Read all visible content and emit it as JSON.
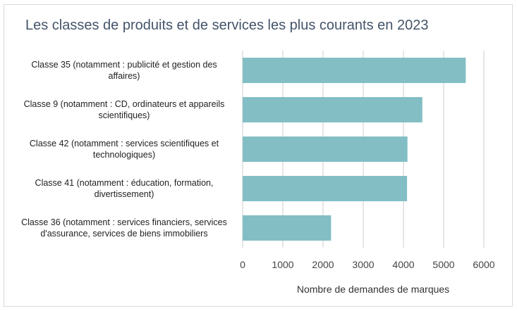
{
  "chart_data": {
    "type": "bar",
    "orientation": "horizontal",
    "title": "Les classes de produits et de services les plus courants en 2023",
    "categories": [
      [
        "Classe 35 (notamment : publicité et gestion des",
        "affaires)"
      ],
      [
        "Classe 9 (notamment : CD, ordinateurs et appareils",
        "scientifiques)"
      ],
      [
        "Classe 42 (notamment : services scientifiques et",
        "technologiques)"
      ],
      [
        "Classe 41 (notamment : éducation, formation,",
        "divertissement)"
      ],
      [
        "Classe 36 (notamment : services financiers, services",
        "d'assurance, services de biens immobiliers"
      ]
    ],
    "values": [
      5550,
      4470,
      4100,
      4090,
      2200
    ],
    "xlabel": "Nombre de demandes de marques",
    "ylabel": "",
    "xlim": [
      0,
      6000
    ],
    "xticks": [
      0,
      1000,
      2000,
      3000,
      4000,
      5000,
      6000
    ],
    "grid": true,
    "bar_color": "#82bec4",
    "grid_color": "#d9d9d9"
  }
}
